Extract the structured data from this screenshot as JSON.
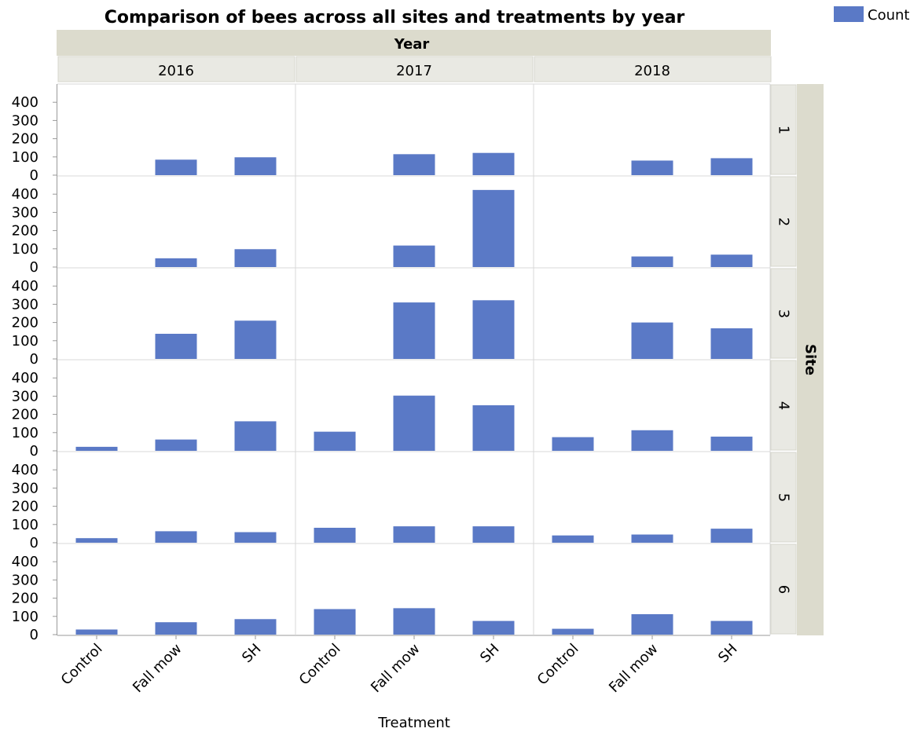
{
  "chart_data": {
    "type": "bar",
    "title": "Comparison of bees across all sites and treatments by year",
    "column_group_label": "Year",
    "row_group_label": "Site",
    "xlabel": "Treatment",
    "ylabel": "",
    "years": [
      "2016",
      "2017",
      "2018"
    ],
    "sites": [
      "1",
      "2",
      "3",
      "4",
      "5",
      "6"
    ],
    "categories": [
      "Control",
      "Fall mow",
      "SH"
    ],
    "yticks": [
      "0",
      "100",
      "200",
      "300",
      "400"
    ],
    "ylim": [
      0,
      480
    ],
    "legend": {
      "label": "Count",
      "position": "top-right"
    },
    "colors": {
      "bar": "#5a79c6",
      "header": "#dcdbcd",
      "subheader": "#e9e9e3",
      "grid": "#d8d8d8"
    },
    "series": [
      {
        "name": "Count",
        "site": "1",
        "year": "2016",
        "values": [
          0,
          85,
          98
        ]
      },
      {
        "name": "Count",
        "site": "1",
        "year": "2017",
        "values": [
          0,
          115,
          122
        ]
      },
      {
        "name": "Count",
        "site": "1",
        "year": "2018",
        "values": [
          0,
          80,
          93
        ]
      },
      {
        "name": "Count",
        "site": "2",
        "year": "2016",
        "values": [
          0,
          48,
          98
        ]
      },
      {
        "name": "Count",
        "site": "2",
        "year": "2017",
        "values": [
          0,
          118,
          423
        ]
      },
      {
        "name": "Count",
        "site": "2",
        "year": "2018",
        "values": [
          0,
          58,
          68
        ]
      },
      {
        "name": "Count",
        "site": "3",
        "year": "2016",
        "values": [
          0,
          138,
          210
        ]
      },
      {
        "name": "Count",
        "site": "3",
        "year": "2017",
        "values": [
          0,
          310,
          322
        ]
      },
      {
        "name": "Count",
        "site": "3",
        "year": "2018",
        "values": [
          0,
          200,
          168
        ]
      },
      {
        "name": "Count",
        "site": "4",
        "year": "2016",
        "values": [
          22,
          62,
          162
        ]
      },
      {
        "name": "Count",
        "site": "4",
        "year": "2017",
        "values": [
          105,
          303,
          250
        ]
      },
      {
        "name": "Count",
        "site": "4",
        "year": "2018",
        "values": [
          75,
          113,
          78
        ]
      },
      {
        "name": "Count",
        "site": "5",
        "year": "2016",
        "values": [
          25,
          63,
          58
        ]
      },
      {
        "name": "Count",
        "site": "5",
        "year": "2017",
        "values": [
          82,
          90,
          90
        ]
      },
      {
        "name": "Count",
        "site": "5",
        "year": "2018",
        "values": [
          40,
          45,
          77
        ]
      },
      {
        "name": "Count",
        "site": "6",
        "year": "2016",
        "values": [
          28,
          68,
          85
        ]
      },
      {
        "name": "Count",
        "site": "6",
        "year": "2017",
        "values": [
          140,
          145,
          75
        ]
      },
      {
        "name": "Count",
        "site": "6",
        "year": "2018",
        "values": [
          32,
          112,
          75
        ]
      }
    ]
  }
}
